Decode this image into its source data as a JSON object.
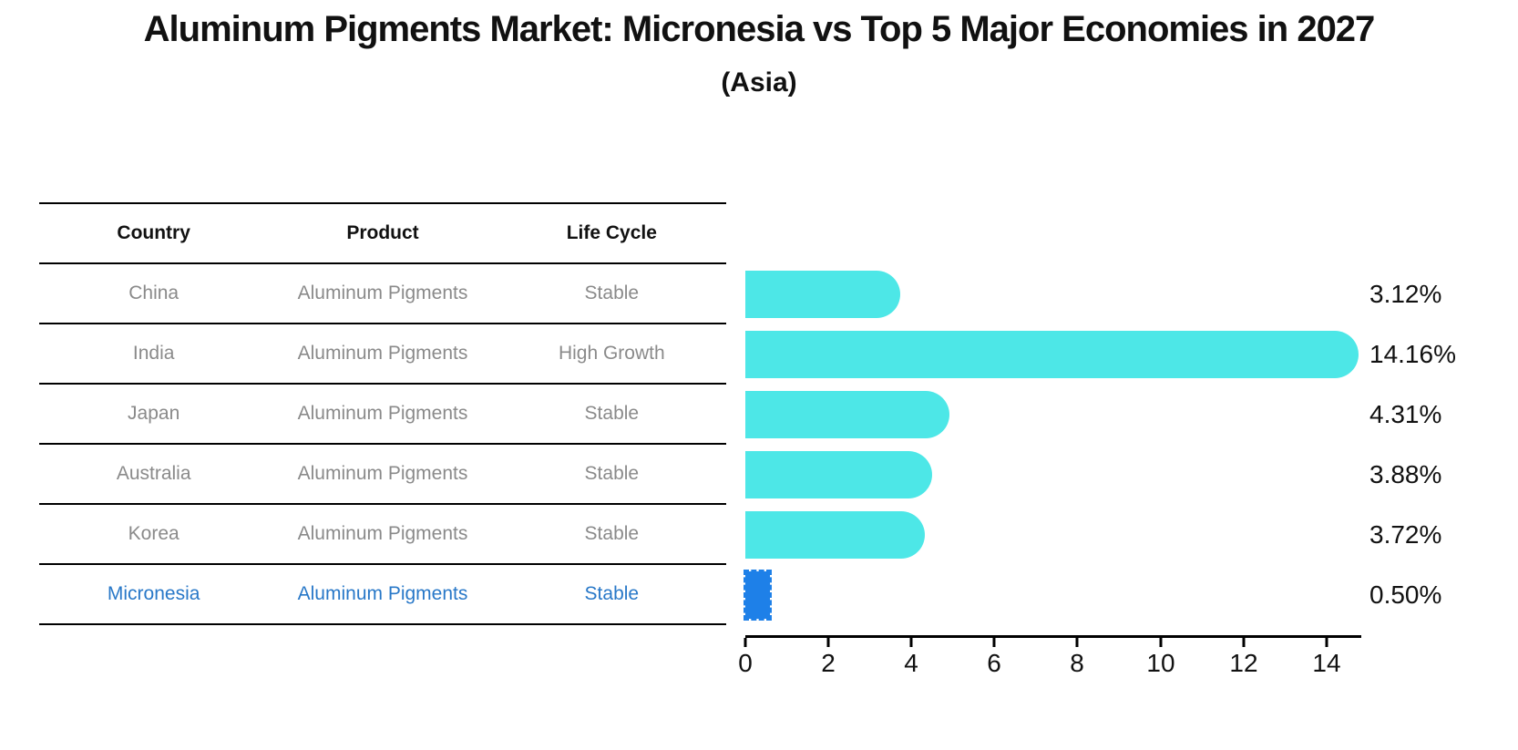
{
  "title": "Aluminum Pigments Market: Micronesia vs Top 5 Major Economies in 2027",
  "subtitle": "(Asia)",
  "colors": {
    "bar": "#4de7e7",
    "highlight_bar": "#1e80e8",
    "highlight_text": "#2878c8",
    "table_text": "#8a8a8a",
    "header_text": "#111111",
    "axis": "#000000"
  },
  "table": {
    "headers": [
      "Country",
      "Product",
      "Life Cycle"
    ],
    "rows": [
      {
        "country": "China",
        "product": "Aluminum Pigments",
        "life_cycle": "Stable",
        "highlight": false
      },
      {
        "country": "India",
        "product": "Aluminum Pigments",
        "life_cycle": "High Growth",
        "highlight": false
      },
      {
        "country": "Japan",
        "product": "Aluminum Pigments",
        "life_cycle": "Stable",
        "highlight": false
      },
      {
        "country": "Australia",
        "product": "Aluminum Pigments",
        "life_cycle": "Stable",
        "highlight": false
      },
      {
        "country": "Korea",
        "product": "Aluminum Pigments",
        "life_cycle": "Stable",
        "highlight": false
      },
      {
        "country": "Micronesia",
        "product": "Aluminum Pigments",
        "life_cycle": "Stable",
        "highlight": true
      }
    ]
  },
  "chart_data": {
    "type": "bar",
    "orientation": "horizontal",
    "title": "Aluminum Pigments Market: Micronesia vs Top 5 Major Economies in 2027",
    "subtitle": "(Asia)",
    "categories": [
      "China",
      "India",
      "Japan",
      "Australia",
      "Korea",
      "Micronesia"
    ],
    "values": [
      3.12,
      14.16,
      4.31,
      3.88,
      3.72,
      0.5
    ],
    "labels": [
      "3.12%",
      "14.16%",
      "4.31%",
      "3.88%",
      "3.72%",
      "0.50%"
    ],
    "highlight_index": 5,
    "xlim": [
      0,
      14.84
    ],
    "xticks": [
      0,
      2,
      4,
      6,
      8,
      10,
      12,
      14
    ],
    "xlabel": "",
    "ylabel": "",
    "grid": false,
    "legend": false
  }
}
